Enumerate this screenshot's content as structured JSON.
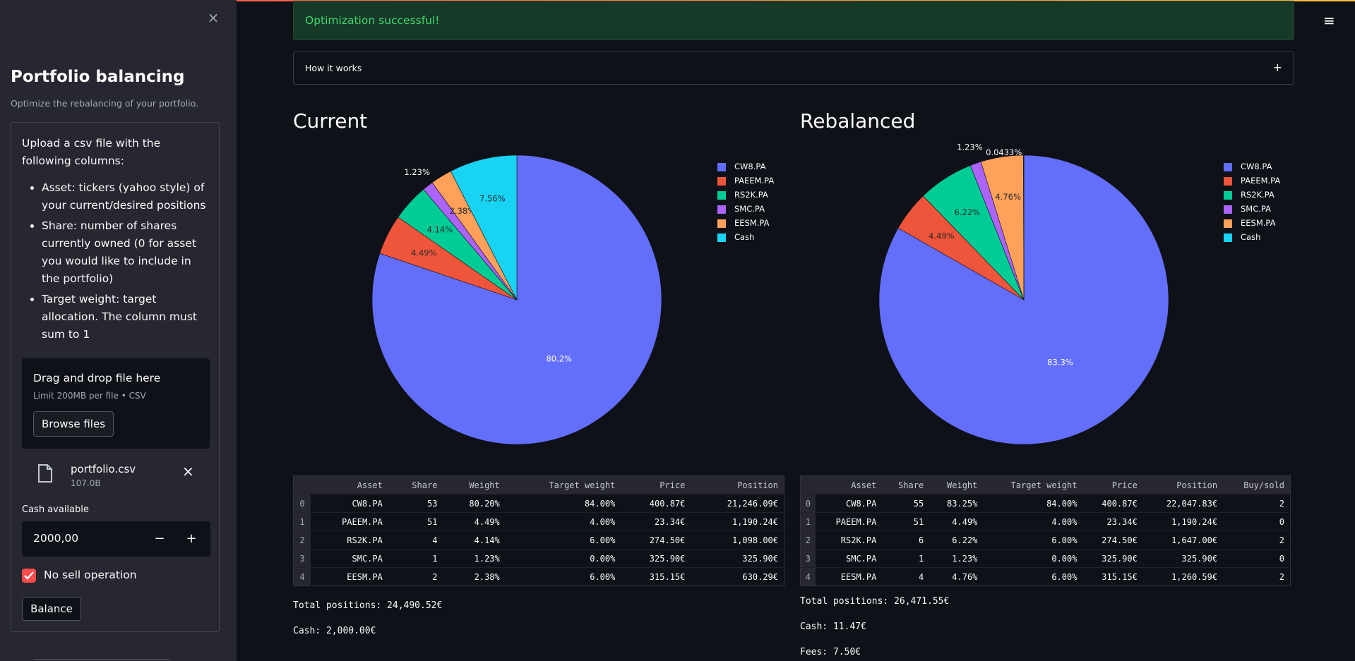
{
  "sidebar": {
    "title": "Portfolio balancing",
    "subtitle": "Optimize the rebalancing of your portfolio.",
    "intro": "Upload a csv file with the following columns:",
    "bullets": [
      "Asset: tickers (yahoo style) of your current/desired positions",
      "Share: number of shares currently owned (0 for asset you would like to include in the portfolio)",
      "Target weight: target allocation. The column must sum to 1"
    ],
    "uploader": {
      "title": "Drag and drop file here",
      "limit": "Limit 200MB per file • CSV",
      "browse_label": "Browse files"
    },
    "file": {
      "name": "portfolio.csv",
      "size": "107.0B"
    },
    "cash_label": "Cash available",
    "cash_value": "2000,00",
    "minus": "−",
    "plus": "+",
    "checkbox_label": "No sell operation",
    "checkbox_checked": true,
    "balance_label": "Balance",
    "close_icon": "×"
  },
  "alert": {
    "text": "Optimization successful!",
    "color": "#3dd56d"
  },
  "expander": {
    "label": "How it works",
    "icon": "+"
  },
  "menu_icon": "≡",
  "colors": {
    "CW8.PA": "#636efa",
    "PAEEM.PA": "#ef553b",
    "RS2K.PA": "#00cc96",
    "SMC.PA": "#ab63fa",
    "EESM.PA": "#ffa15a",
    "Cash": "#19d3f3"
  },
  "chart_data": [
    {
      "type": "pie",
      "title": "Current",
      "labels": [
        "CW8.PA",
        "PAEEM.PA",
        "RS2K.PA",
        "SMC.PA",
        "EESM.PA",
        "Cash"
      ],
      "values": [
        80.2,
        4.49,
        4.14,
        1.23,
        2.38,
        7.56
      ],
      "text_labels": [
        "80.2%",
        "4.49%",
        "4.14%",
        "1.23%",
        "2.38%",
        "7.56%"
      ],
      "legend_position": "top-right"
    },
    {
      "type": "pie",
      "title": "Rebalanced",
      "labels": [
        "CW8.PA",
        "PAEEM.PA",
        "RS2K.PA",
        "SMC.PA",
        "EESM.PA",
        "Cash"
      ],
      "values": [
        83.3,
        4.49,
        6.22,
        1.23,
        4.76,
        0.0433
      ],
      "text_labels": [
        "83.3%",
        "4.49%",
        "6.22%",
        "1.23%",
        "4.76%",
        "0.0433%"
      ],
      "legend_position": "top-right"
    }
  ],
  "current_table": {
    "columns": [
      "",
      "Asset",
      "Share",
      "Weight",
      "Target weight",
      "Price",
      "Position"
    ],
    "rows": [
      [
        "0",
        "CW8.PA",
        "53",
        "80.20%",
        "84.00%",
        "400.87€",
        "21,246.09€"
      ],
      [
        "1",
        "PAEEM.PA",
        "51",
        "4.49%",
        "4.00%",
        "23.34€",
        "1,190.24€"
      ],
      [
        "2",
        "RS2K.PA",
        "4",
        "4.14%",
        "6.00%",
        "274.50€",
        "1,098.00€"
      ],
      [
        "3",
        "SMC.PA",
        "1",
        "1.23%",
        "0.00%",
        "325.90€",
        "325.90€"
      ],
      [
        "4",
        "EESM.PA",
        "2",
        "2.38%",
        "6.00%",
        "315.15€",
        "630.29€"
      ]
    ]
  },
  "rebalanced_table": {
    "columns": [
      "",
      "Asset",
      "Share",
      "Weight",
      "Target weight",
      "Price",
      "Position",
      "Buy/sold"
    ],
    "rows": [
      [
        "0",
        "CW8.PA",
        "55",
        "83.25%",
        "84.00%",
        "400.87€",
        "22,047.83€",
        "2"
      ],
      [
        "1",
        "PAEEM.PA",
        "51",
        "4.49%",
        "4.00%",
        "23.34€",
        "1,190.24€",
        "0"
      ],
      [
        "2",
        "RS2K.PA",
        "6",
        "6.22%",
        "6.00%",
        "274.50€",
        "1,647.00€",
        "2"
      ],
      [
        "3",
        "SMC.PA",
        "1",
        "1.23%",
        "0.00%",
        "325.90€",
        "325.90€",
        "0"
      ],
      [
        "4",
        "EESM.PA",
        "4",
        "4.76%",
        "6.00%",
        "315.15€",
        "1,260.59€",
        "2"
      ]
    ]
  },
  "current_summary": {
    "total": "Total positions: 24,490.52€",
    "cash": "Cash: 2,000.00€"
  },
  "rebalanced_summary": {
    "total": "Total positions: 26,471.55€",
    "cash": "Cash: 11.47€",
    "fees": "Fees: 7.50€"
  }
}
